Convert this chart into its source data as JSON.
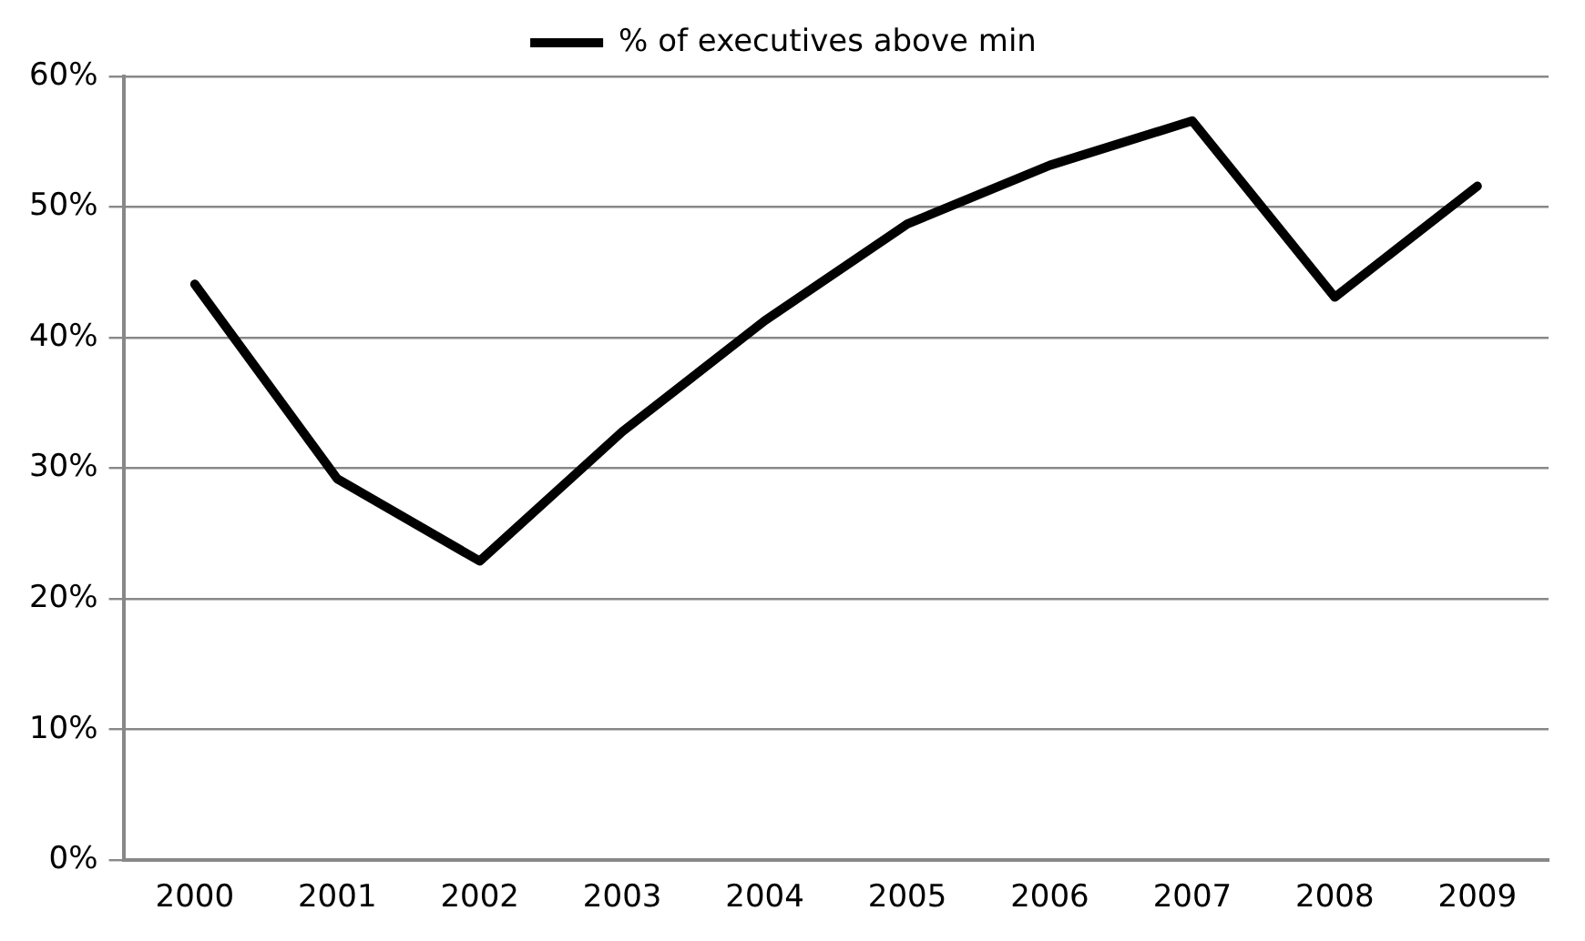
{
  "chart_data": {
    "type": "line",
    "categories": [
      "2000",
      "2001",
      "2002",
      "2003",
      "2004",
      "2005",
      "2006",
      "2007",
      "2008",
      "2009"
    ],
    "series": [
      {
        "name": "% of executives above min",
        "color": "#000000",
        "values": [
          44.1,
          29.2,
          22.9,
          32.8,
          41.3,
          48.7,
          53.2,
          56.6,
          43.1,
          51.6
        ]
      }
    ],
    "ylim": [
      0,
      60
    ],
    "yticks": [
      {
        "value": 0,
        "label": "0%"
      },
      {
        "value": 10,
        "label": "10%"
      },
      {
        "value": 20,
        "label": "20%"
      },
      {
        "value": 30,
        "label": "30%"
      },
      {
        "value": 40,
        "label": "40%"
      },
      {
        "value": 50,
        "label": "50%"
      },
      {
        "value": 60,
        "label": "60%"
      }
    ],
    "grid": "y",
    "legend": "top",
    "marker": "none",
    "line_style": "solid"
  }
}
